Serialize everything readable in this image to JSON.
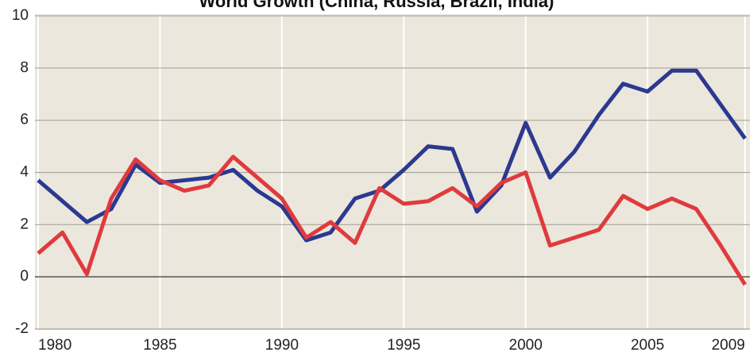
{
  "chart_data": {
    "type": "line",
    "title": "World Growth (China, Russia, Brazil, India)",
    "x": [
      1980,
      1981,
      1982,
      1983,
      1984,
      1985,
      1986,
      1987,
      1988,
      1989,
      1990,
      1991,
      1992,
      1993,
      1994,
      1995,
      1996,
      1997,
      1998,
      1999,
      2000,
      2001,
      2002,
      2003,
      2004,
      2005,
      2006,
      2007,
      2008,
      2009
    ],
    "series": [
      {
        "color": "#2b3990",
        "values": [
          3.7,
          2.9,
          2.1,
          2.6,
          4.3,
          3.6,
          3.7,
          3.8,
          4.1,
          3.3,
          2.7,
          1.4,
          1.7,
          3.0,
          3.3,
          4.1,
          5.0,
          4.9,
          2.5,
          3.5,
          5.9,
          3.8,
          4.8,
          6.2,
          7.4,
          7.1,
          7.9,
          7.9,
          6.6,
          5.3
        ]
      },
      {
        "color": "#e03a3e",
        "values": [
          0.9,
          1.7,
          0.1,
          3.0,
          4.5,
          3.7,
          3.3,
          3.5,
          4.6,
          3.8,
          3.0,
          1.5,
          2.1,
          1.3,
          3.4,
          2.8,
          2.9,
          3.4,
          2.7,
          3.6,
          4.0,
          1.2,
          1.5,
          1.8,
          3.1,
          2.6,
          3.0,
          2.6,
          1.2,
          -0.3
        ]
      }
    ],
    "xlim": [
      1980,
      2009
    ],
    "xticks": [
      1980,
      1985,
      1990,
      1995,
      2000,
      2005,
      2009
    ],
    "ylim": [
      -2,
      10
    ],
    "yticks": [
      -2,
      0,
      2,
      4,
      6,
      8,
      10
    ],
    "grid": true
  }
}
